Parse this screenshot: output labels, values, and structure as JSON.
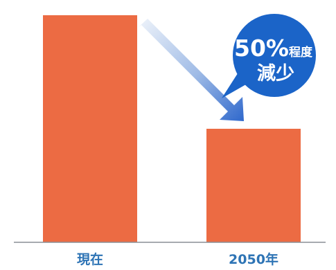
{
  "colors": {
    "bar": "#ec6b43",
    "axis": "#8a8f96",
    "label": "#2e74b5",
    "bubble": "#1b64c8",
    "arrow_light": "#e8eef8",
    "arrow_dark": "#3a6fd0"
  },
  "callout": {
    "percent": "50%",
    "suffix": "程度",
    "line2": "減少"
  },
  "chart_data": {
    "type": "bar",
    "categories": [
      "現在",
      "2050年"
    ],
    "values": [
      100,
      50
    ],
    "ylim": [
      0,
      100
    ],
    "grid": false,
    "legend": "none"
  }
}
